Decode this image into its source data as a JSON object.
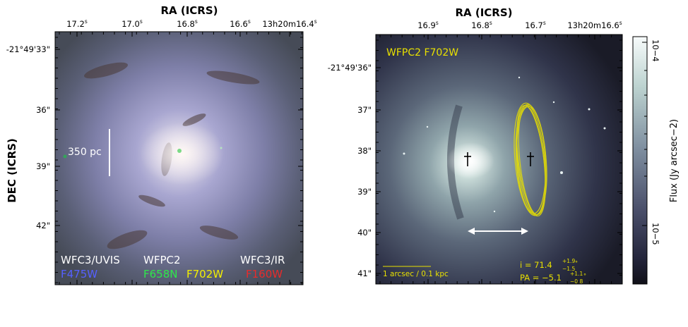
{
  "left_panel": {
    "x_axis_title": "RA (ICRS)",
    "y_axis_title": "DEC (ICRS)",
    "ra_ticks": [
      {
        "main": "17.2",
        "sup": "s"
      },
      {
        "main": "17.0",
        "sup": "s"
      },
      {
        "main": "16.8",
        "sup": "s"
      },
      {
        "main": "16.6",
        "sup": "s"
      },
      {
        "main": "13h20m16.4",
        "sup": "s"
      }
    ],
    "dec_ticks": [
      "-21°49'33\"",
      "36\"",
      "39\"",
      "42\""
    ],
    "scale_bar_label": "350 pc",
    "filter_labels": [
      {
        "instrument": "WFC3/UVIS",
        "filter": "F475W",
        "filter_color": "#5560ff"
      },
      {
        "instrument": "WFPC2",
        "filter": "F658N",
        "filter_color": "#2ee84a"
      },
      {
        "instrument": "",
        "filter": "F702W",
        "filter_color": "#f4f000"
      },
      {
        "instrument": "WFC3/IR",
        "filter": "F160W",
        "filter_color": "#e82b2b"
      }
    ]
  },
  "right_panel": {
    "x_axis_title": "RA (ICRS)",
    "y_axis_title": "",
    "ra_ticks": [
      {
        "main": "16.9",
        "sup": "s"
      },
      {
        "main": "16.8",
        "sup": "s"
      },
      {
        "main": "16.7",
        "sup": "s"
      },
      {
        "main": "13h20m16.6",
        "sup": "s"
      }
    ],
    "dec_ticks": [
      "-21°49'36\"",
      "37\"",
      "38\"",
      "39\"",
      "40\"",
      "41\""
    ],
    "panel_label": "WFPC2 F702W",
    "scale_label": "1 arcsec / 0.1 kpc",
    "inclination_text": "i = 71.4",
    "inclination_err_up": "+1.9",
    "inclination_err_down": "−1.5",
    "pa_text": "PA = −5.1",
    "pa_err_up": "+1.1",
    "pa_err_down": "−0.8",
    "degree_symbol": "°",
    "annotation_color": "#e8e000"
  },
  "colorbar": {
    "label": "Flux (Jy arcsec−2)",
    "tick_top": "10−4",
    "tick_bottom": "10−5"
  }
}
